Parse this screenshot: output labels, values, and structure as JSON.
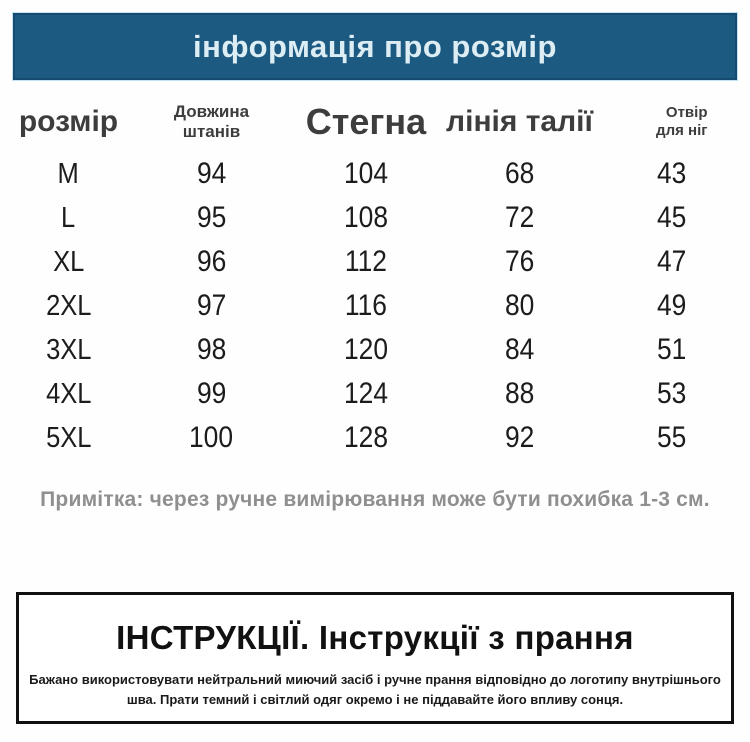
{
  "header": {
    "title": "інформація про розмір"
  },
  "size_table": {
    "columns": [
      {
        "key": "size",
        "label": "розмір"
      },
      {
        "key": "pants_length",
        "label": "Довжина штанів"
      },
      {
        "key": "hips",
        "label": "Стегна"
      },
      {
        "key": "waist_line",
        "label": "лінія талії"
      },
      {
        "key": "leg_opening",
        "label": "Отвір для ніг"
      }
    ],
    "rows": [
      {
        "size": "M",
        "pants_length": "94",
        "hips": "104",
        "waist_line": "68",
        "leg_opening": "43"
      },
      {
        "size": "L",
        "pants_length": "95",
        "hips": "108",
        "waist_line": "72",
        "leg_opening": "45"
      },
      {
        "size": "XL",
        "pants_length": "96",
        "hips": "112",
        "waist_line": "76",
        "leg_opening": "47"
      },
      {
        "size": "2XL",
        "pants_length": "97",
        "hips": "116",
        "waist_line": "80",
        "leg_opening": "49"
      },
      {
        "size": "3XL",
        "pants_length": "98",
        "hips": "120",
        "waist_line": "84",
        "leg_opening": "51"
      },
      {
        "size": "4XL",
        "pants_length": "99",
        "hips": "124",
        "waist_line": "88",
        "leg_opening": "53"
      },
      {
        "size": "5XL",
        "pants_length": "100",
        "hips": "128",
        "waist_line": "92",
        "leg_opening": "55"
      }
    ]
  },
  "note": {
    "text": "Примітка: через ручне вимірювання може бути похибка 1-3 см."
  },
  "care_box": {
    "title": "ІНСТРУКЦІЇ. Інструкції з прання",
    "body": "Бажано використовувати нейтральний миючий засіб і ручне прання відповідно до логотипу внутрішнього шва. Прати темний і світлий одяг окремо і не піддавайте його впливу сонця."
  },
  "colors": {
    "header_bg": "#1d5a82",
    "header_border": "#164a6e",
    "header_outline": "#bfe3f2",
    "header_text": "#ddedf4",
    "table_header_text": "#3d3d3d",
    "data_text": "#1c1c1c",
    "note_text": "#8f8f8f",
    "box_border": "#101010",
    "box_text": "#111111"
  }
}
